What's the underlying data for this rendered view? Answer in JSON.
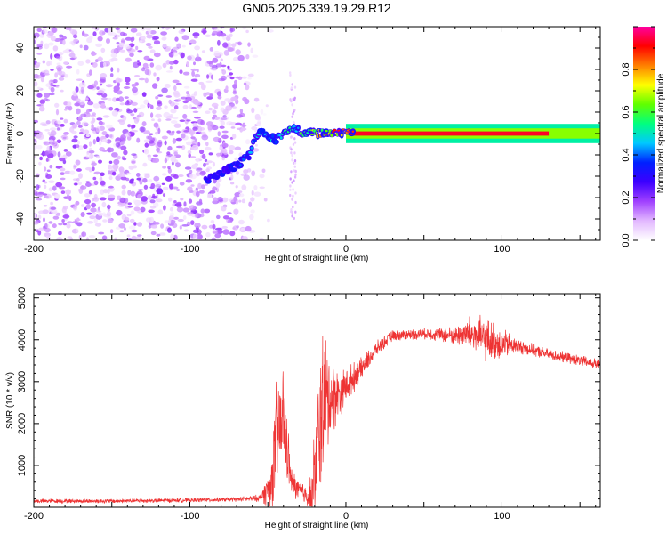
{
  "title": "GN05.2025.339.19.29.R12",
  "chart_data": [
    {
      "type": "heatmap",
      "xlabel": "Height of straight line (km)",
      "ylabel": "Frequency (Hz)",
      "xlim": [
        -200,
        163
      ],
      "ylim": [
        -50,
        50
      ],
      "xticks": [
        -200,
        -100,
        0,
        100
      ],
      "xtick_labels": [
        "-200",
        "-100",
        "0",
        "100"
      ],
      "yticks": [
        -40,
        -20,
        0,
        20,
        40
      ],
      "ytick_labels": [
        "-40",
        "-20",
        "0",
        "20",
        "40"
      ],
      "colorbar": {
        "label": "Normalized spectral amplitude",
        "range": [
          0,
          1
        ],
        "ticks": [
          0.0,
          0.2,
          0.4,
          0.6,
          0.8
        ],
        "tick_labels": [
          "0.0",
          "0.2",
          "0.4",
          "0.6",
          "0.8"
        ],
        "colors": [
          "#ffffff",
          "#e2b8ff",
          "#a040ff",
          "#3c00ff",
          "#0020ff",
          "#00c8ff",
          "#00ff80",
          "#60ff00",
          "#ffff00",
          "#ff8000",
          "#ff0000",
          "#ff00a0"
        ]
      },
      "signal_track": {
        "x": [
          -90,
          -80,
          -70,
          -62,
          -58,
          -55,
          -50,
          -45,
          -40,
          -35,
          -30,
          -25,
          -20,
          -15,
          -10,
          -5,
          0,
          10,
          50,
          100,
          130,
          163
        ],
        "freq": [
          -22,
          -18,
          -15,
          -10,
          -2,
          1,
          -1,
          -3,
          0,
          3,
          1,
          0,
          0.5,
          0,
          0.3,
          0,
          0,
          0,
          0,
          0,
          0,
          0
        ],
        "amplitude": [
          0.3,
          0.3,
          0.35,
          0.4,
          0.45,
          0.45,
          0.45,
          0.5,
          0.5,
          0.55,
          0.55,
          0.6,
          0.7,
          0.75,
          0.8,
          0.85,
          0.9,
          0.95,
          0.98,
          0.95,
          0.85,
          0.6
        ]
      },
      "noise_region_x": [
        -200,
        -60
      ]
    },
    {
      "type": "line",
      "xlabel": "Height of straight line (km)",
      "ylabel": "SNR (10 * v/v)",
      "xlim": [
        -200,
        163
      ],
      "ylim": [
        0,
        5100
      ],
      "xticks": [
        -200,
        -100,
        0,
        100
      ],
      "xtick_labels": [
        "-200",
        "-100",
        "0",
        "100"
      ],
      "yticks": [
        1000,
        2000,
        3000,
        4000,
        5000
      ],
      "ytick_labels": [
        "1000",
        "2000",
        "3000",
        "4000",
        "5000"
      ],
      "color": "#ee3333",
      "profile": {
        "x": [
          -200,
          -150,
          -100,
          -70,
          -55,
          -48,
          -45,
          -40,
          -37,
          -35,
          -30,
          -25,
          -22,
          -18,
          -15,
          -10,
          -5,
          0,
          10,
          20,
          30,
          50,
          70,
          80,
          90,
          100,
          110,
          130,
          163
        ],
        "mean": [
          150,
          150,
          170,
          190,
          220,
          500,
          1500,
          2200,
          1200,
          600,
          400,
          300,
          200,
          1500,
          2500,
          2600,
          2700,
          2900,
          3300,
          3800,
          4100,
          4150,
          4100,
          4150,
          4000,
          3900,
          3850,
          3650,
          3400
        ],
        "amp": [
          60,
          60,
          60,
          60,
          100,
          600,
          1600,
          1400,
          800,
          400,
          300,
          300,
          800,
          1800,
          2200,
          1200,
          700,
          500,
          300,
          200,
          150,
          150,
          250,
          500,
          600,
          450,
          200,
          150,
          150
        ]
      }
    }
  ]
}
